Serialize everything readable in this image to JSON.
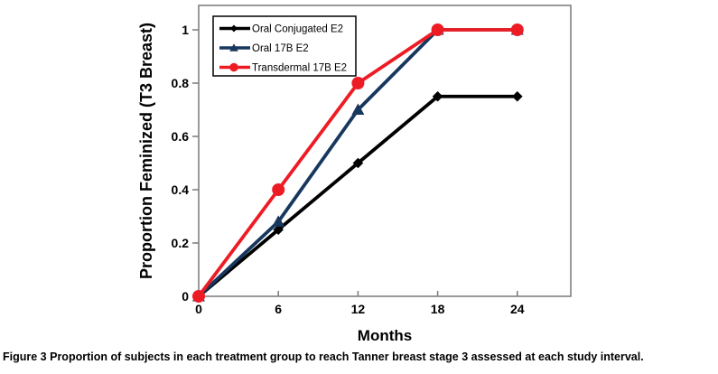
{
  "figure": {
    "caption_label": "Figure 3",
    "caption_text": "Proportion of subjects in each treatment group to reach Tanner breast stage 3 assessed at each study interval."
  },
  "chart_data": {
    "type": "line",
    "x": [
      0,
      6,
      12,
      18,
      24
    ],
    "series": [
      {
        "name": "Oral Conjugated E2",
        "color": "#000000",
        "marker": "diamond",
        "values": [
          0,
          0.25,
          0.5,
          0.75,
          0.75
        ]
      },
      {
        "name": "Oral 17B E2",
        "color": "#17375E",
        "marker": "triangle",
        "values": [
          0,
          0.28,
          0.7,
          1,
          1
        ]
      },
      {
        "name": "Transdermal 17B E2",
        "color": "#ED1C24",
        "marker": "circle",
        "values": [
          0,
          0.4,
          0.8,
          1,
          1
        ]
      }
    ],
    "xlabel": "Months",
    "ylabel": "Proportion Feminized (T3 Breast)",
    "xticks": [
      0,
      6,
      12,
      18,
      24
    ],
    "yticks": [
      0,
      0.2,
      0.4,
      0.6,
      0.8,
      1
    ],
    "xlim": [
      0,
      28
    ],
    "ylim": [
      0,
      1.09
    ],
    "grid": false,
    "legend_position": "top-left-inside",
    "frame_color": "#808080",
    "background": "#ffffff"
  }
}
